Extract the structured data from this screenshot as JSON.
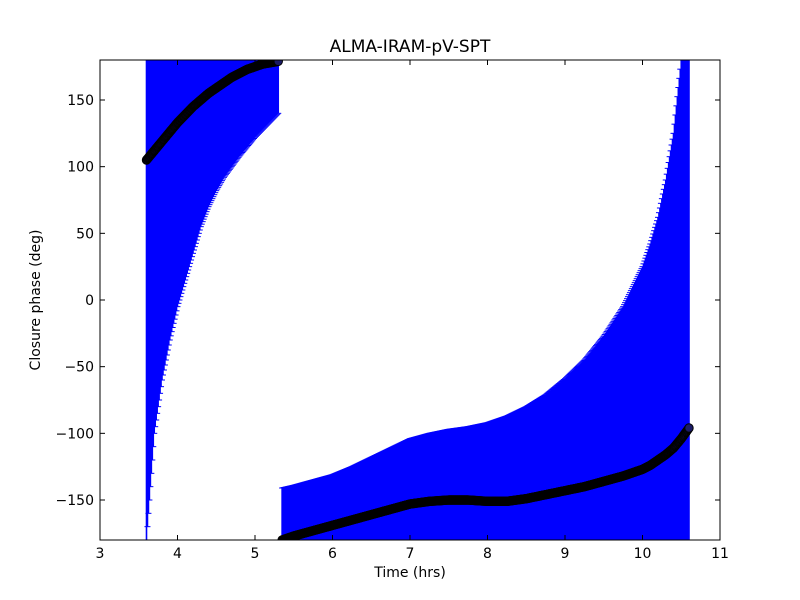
{
  "chart_data": {
    "type": "scatter",
    "title": "ALMA-IRAM-pV-SPT",
    "xlabel": "Time (hrs)",
    "ylabel": "Closure phase (deg)",
    "xlim": [
      3,
      11
    ],
    "ylim": [
      -180,
      180
    ],
    "xticks": [
      3,
      4,
      5,
      6,
      7,
      8,
      9,
      10,
      11
    ],
    "xtick_labels": [
      "3",
      "4",
      "5",
      "6",
      "7",
      "8",
      "9",
      "10",
      "11"
    ],
    "yticks": [
      -150,
      -100,
      -50,
      0,
      50,
      100,
      150
    ],
    "ytick_labels": [
      "−150",
      "−100",
      "−50",
      "0",
      "50",
      "100",
      "150"
    ],
    "grid": false,
    "colors": {
      "errorbar": "#0000ff",
      "marker_edge": "#000000",
      "marker_fill": "#1a1a66"
    },
    "series": [
      {
        "segment": 1,
        "x": [
          3.6,
          3.7,
          3.8,
          3.9,
          4.0,
          4.1,
          4.2,
          4.3,
          4.4,
          4.5,
          4.6,
          4.7,
          4.8,
          4.9,
          5.0,
          5.1,
          5.2,
          5.3
        ],
        "y": [
          105,
          112,
          119,
          126,
          133,
          139,
          145,
          150,
          155,
          159,
          163,
          167,
          170,
          173,
          175,
          177,
          178,
          179
        ],
        "err_low": [
          -180,
          -100,
          -60,
          -30,
          -5,
          15,
          35,
          55,
          70,
          82,
          92,
          100,
          108,
          115,
          122,
          128,
          134,
          140
        ],
        "err_high": [
          180,
          180,
          180,
          180,
          180,
          180,
          180,
          180,
          180,
          180,
          180,
          180,
          180,
          180,
          180,
          180,
          180,
          180
        ]
      },
      {
        "segment": 2,
        "x": [
          5.35,
          5.5,
          5.75,
          6.0,
          6.25,
          6.5,
          6.75,
          7.0,
          7.25,
          7.5,
          7.75,
          8.0,
          8.25,
          8.5,
          8.75,
          9.0,
          9.25,
          9.5,
          9.75,
          10.0,
          10.1,
          10.2,
          10.3,
          10.4,
          10.5,
          10.6
        ],
        "y": [
          -180,
          -177,
          -173,
          -169,
          -165,
          -161,
          -157,
          -153,
          -151,
          -150,
          -150,
          -151,
          -151,
          -149,
          -146,
          -143,
          -140,
          -136,
          -132,
          -127,
          -124,
          -120,
          -116,
          -111,
          -104,
          -96
        ],
        "err_low": [
          -180,
          -180,
          -180,
          -180,
          -180,
          -180,
          -180,
          -180,
          -180,
          -180,
          -180,
          -180,
          -180,
          -180,
          -180,
          -180,
          -180,
          -180,
          -180,
          -180,
          -180,
          -180,
          -180,
          -180,
          -180,
          -180
        ],
        "err_high": [
          -141,
          -139,
          -135,
          -131,
          -125,
          -118,
          -111,
          -104,
          -100,
          -97,
          -95,
          -92,
          -87,
          -80,
          -71,
          -59,
          -45,
          -27,
          -5,
          25,
          42,
          62,
          90,
          125,
          180,
          180
        ]
      }
    ]
  }
}
